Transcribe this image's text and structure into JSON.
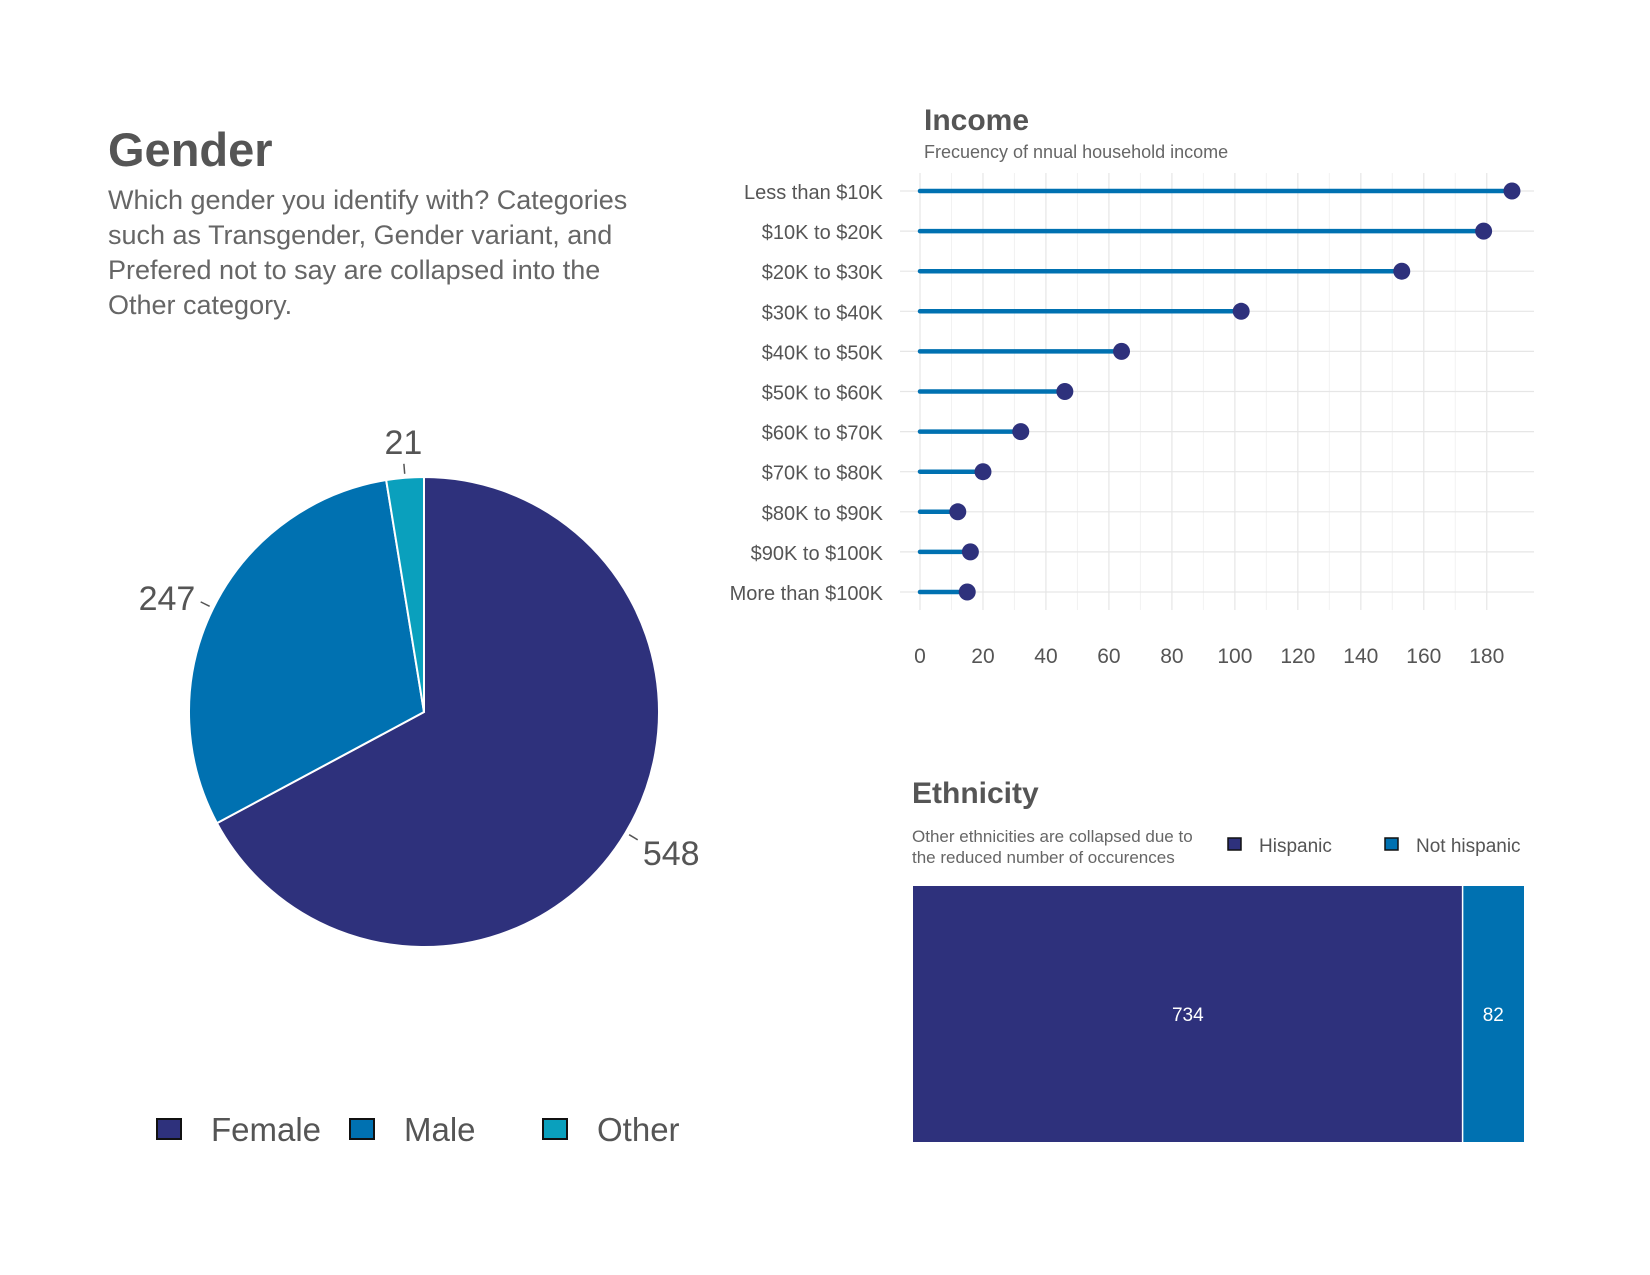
{
  "colors": {
    "female": "#2E317C",
    "male": "#0071B1",
    "other": "#0AA0BD",
    "dot": "#2E317C",
    "stem": "#0071B1",
    "grid": "#E6E6E6",
    "text": "#555555"
  },
  "gender": {
    "title": "Gender",
    "subtitle": "Which gender you identify with? Categories such as Transgender, Gender variant, and Prefered not to say are collapsed into the Other category."
  },
  "income": {
    "title": "Income",
    "subtitle": "Frecuency of nnual household income"
  },
  "ethnicity": {
    "title": "Ethnicity",
    "subtitle": "Other ethnicities are collapsed due to the reduced number of occurences"
  },
  "chart_data": [
    {
      "type": "pie",
      "categories": [
        "Female",
        "Male",
        "Other"
      ],
      "values": [
        548,
        247,
        21
      ],
      "legend_position": "bottom"
    },
    {
      "type": "bar",
      "orientation": "horizontal",
      "style": "lollipop",
      "categories": [
        "Less than $10K",
        "$10K to $20K",
        "$20K to $30K",
        "$30K to $40K",
        "$40K to $50K",
        "$50K to $60K",
        "$60K to $70K",
        "$70K to $80K",
        "$80K to $90K",
        "$90K to $100K",
        "More than $100K"
      ],
      "values": [
        188,
        179,
        153,
        102,
        64,
        46,
        32,
        20,
        12,
        16,
        15
      ],
      "xlim": [
        0,
        195
      ],
      "xticks": [
        0,
        20,
        40,
        60,
        80,
        100,
        120,
        140,
        160,
        180
      ],
      "grid": true
    },
    {
      "type": "bar",
      "orientation": "horizontal",
      "stacked": true,
      "series": [
        {
          "name": "Hispanic",
          "values": [
            734
          ]
        },
        {
          "name": "Not hispanic",
          "values": [
            82
          ]
        }
      ],
      "legend_position": "top-right"
    }
  ]
}
